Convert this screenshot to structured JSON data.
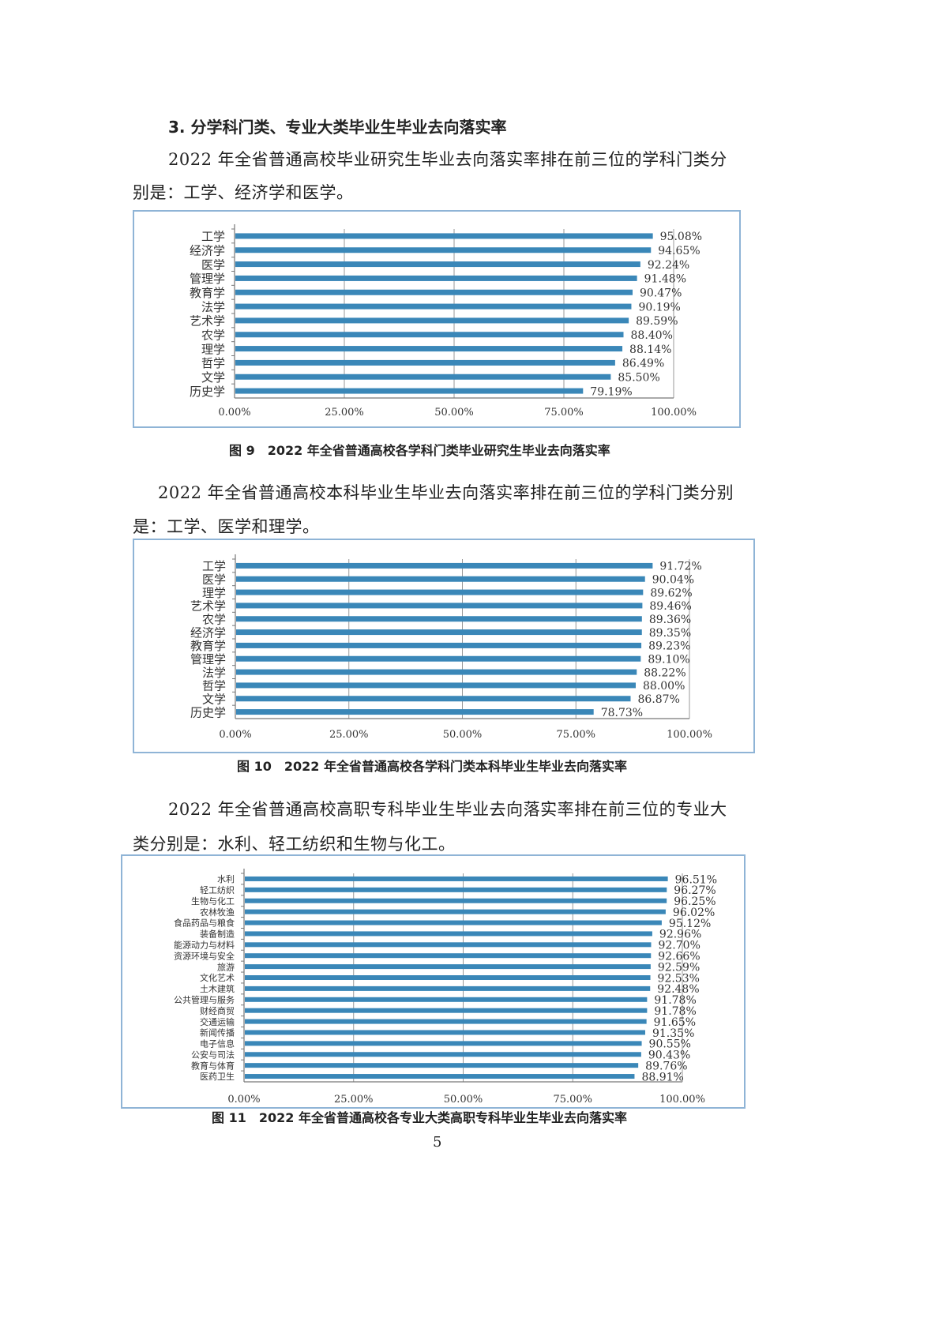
{
  "section_heading": "3. 分学科门类、专业大类毕业生毕业去向落实率",
  "paragraphs": [
    {
      "line1": "2022 年全省普通高校毕业研究生毕业去向落实率排在前三位的学科门类分",
      "line2": "别是：工学、经济学和医学。"
    },
    {
      "line1": "2022 年全省普通高校本科毕业生毕业去向落实率排在前三位的学科门类分别",
      "line2": "是：工学、医学和理学。"
    },
    {
      "line1": "2022 年全省普通高校高职专科毕业生毕业去向落实率排在前三位的专业大",
      "line2": "类分别是：水利、轻工纺织和生物与化工。"
    }
  ],
  "captions": [
    "图 9　2022 年全省普通高校各学科门类毕业研究生毕业去向落实率",
    "图 10　2022 年全省普通高校各学科门类本科毕业生毕业去向落实率",
    "图 11　2022 年全省普通高校各专业大类高职专科毕业生毕业去向落实率"
  ],
  "page_number": "5",
  "bar_color": "#3a87b8",
  "chart_data": [
    {
      "type": "bar",
      "orientation": "horizontal",
      "categories": [
        "工学",
        "经济学",
        "医学",
        "管理学",
        "教育学",
        "法学",
        "艺术学",
        "农学",
        "理学",
        "哲学",
        "文学",
        "历史学"
      ],
      "values": [
        95.08,
        94.65,
        92.24,
        91.48,
        90.47,
        90.19,
        89.59,
        88.4,
        88.14,
        86.49,
        85.5,
        79.19
      ],
      "value_labels": [
        "95.08%",
        "94.65%",
        "92.24%",
        "91.48%",
        "90.47%",
        "90.19%",
        "89.59%",
        "88.40%",
        "88.14%",
        "86.49%",
        "85.50%",
        "79.19%"
      ],
      "xlim": [
        0,
        100
      ],
      "xticks": [
        "0.00%",
        "25.00%",
        "50.00%",
        "75.00%",
        "100.00%"
      ],
      "grid": true,
      "title": "",
      "xlabel": "",
      "ylabel": ""
    },
    {
      "type": "bar",
      "orientation": "horizontal",
      "categories": [
        "工学",
        "医学",
        "理学",
        "艺术学",
        "农学",
        "经济学",
        "教育学",
        "管理学",
        "法学",
        "哲学",
        "文学",
        "历史学"
      ],
      "values": [
        91.72,
        90.04,
        89.62,
        89.46,
        89.36,
        89.35,
        89.23,
        89.1,
        88.22,
        88.0,
        86.87,
        78.73
      ],
      "value_labels": [
        "91.72%",
        "90.04%",
        "89.62%",
        "89.46%",
        "89.36%",
        "89.35%",
        "89.23%",
        "89.10%",
        "88.22%",
        "88.00%",
        "86.87%",
        "78.73%"
      ],
      "xlim": [
        0,
        100
      ],
      "xticks": [
        "0.00%",
        "25.00%",
        "50.00%",
        "75.00%",
        "100.00%"
      ],
      "grid": true,
      "title": "",
      "xlabel": "",
      "ylabel": ""
    },
    {
      "type": "bar",
      "orientation": "horizontal",
      "categories": [
        "水利",
        "轻工纺织",
        "生物与化工",
        "农林牧渔",
        "食品药品与粮食",
        "装备制造",
        "能源动力与材料",
        "资源环境与安全",
        "旅游",
        "文化艺术",
        "土木建筑",
        "公共管理与服务",
        "财经商贸",
        "交通运输",
        "新闻传播",
        "电子信息",
        "公安与司法",
        "教育与体育",
        "医药卫生"
      ],
      "values": [
        96.51,
        96.27,
        96.25,
        96.02,
        95.12,
        92.96,
        92.7,
        92.66,
        92.59,
        92.53,
        92.48,
        91.78,
        91.78,
        91.65,
        91.35,
        90.55,
        90.43,
        89.76,
        88.91
      ],
      "value_labels": [
        "96.51%",
        "96.27%",
        "96.25%",
        "96.02%",
        "95.12%",
        "92.96%",
        "92.70%",
        "92.66%",
        "92.59%",
        "92.53%",
        "92.48%",
        "91.78%",
        "91.78%",
        "91.65%",
        "91.35%",
        "90.55%",
        "90.43%",
        "89.76%",
        "88.91%"
      ],
      "xlim": [
        0,
        100
      ],
      "xticks": [
        "0.00%",
        "25.00%",
        "50.00%",
        "75.00%",
        "100.00%"
      ],
      "grid": true,
      "title": "",
      "xlabel": "",
      "ylabel": ""
    }
  ]
}
